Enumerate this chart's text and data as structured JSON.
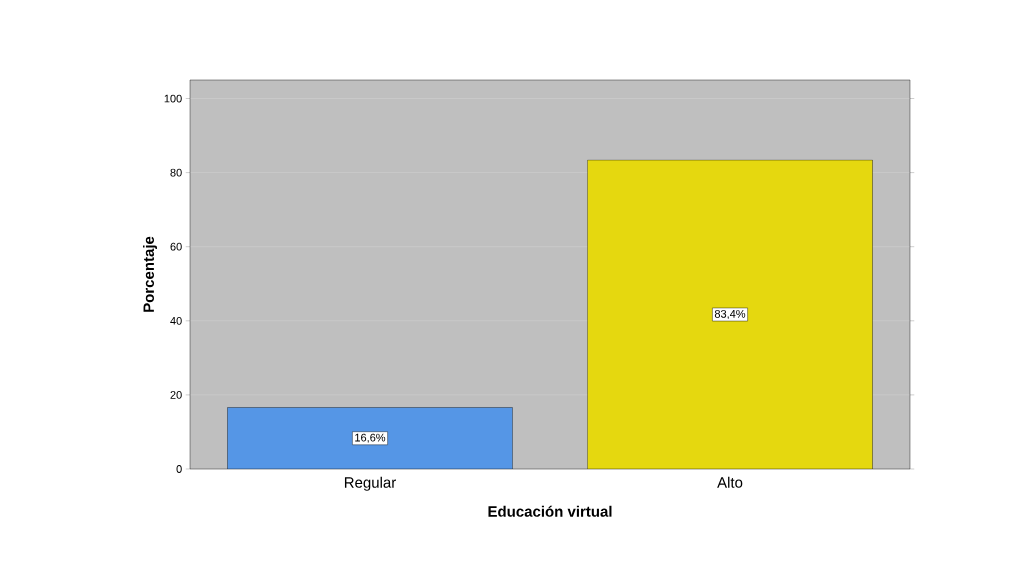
{
  "chart_data": {
    "type": "bar",
    "xlabel": "Educación virtual",
    "ylabel": "Porcentaje",
    "categories": [
      "Regular",
      "Alto"
    ],
    "values": [
      16.6,
      83.4
    ],
    "colors": [
      "#5596e6",
      "#e5d80f"
    ],
    "value_labels": [
      "16,6%",
      "83,4%"
    ],
    "ylim": [
      0,
      105
    ],
    "yticks": [
      0,
      20,
      40,
      60,
      80,
      100
    ],
    "grid": "y"
  }
}
